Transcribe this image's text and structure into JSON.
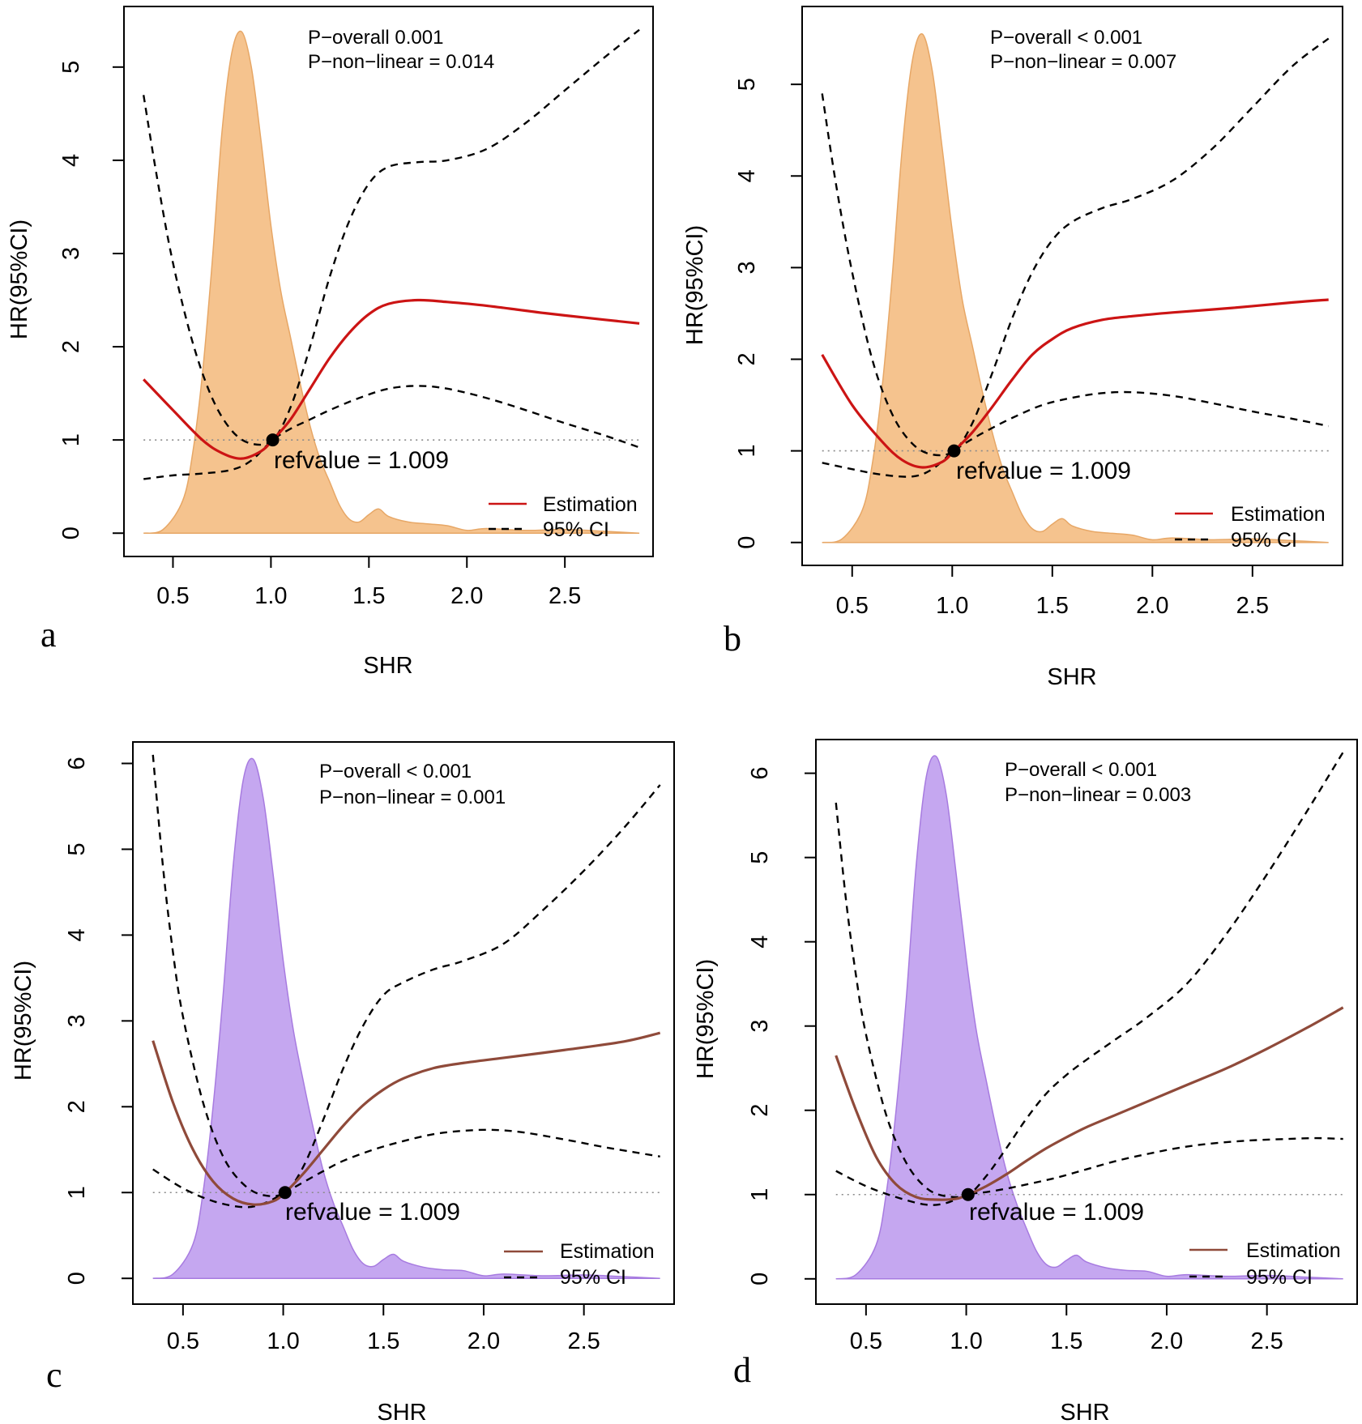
{
  "figure": {
    "colors": {
      "orange_fill": "#f5c38e",
      "orange_edge": "#e7a766",
      "purple_fill": "#c5a7f0",
      "purple_edge": "#a77be0",
      "red_line": "#cc1414",
      "brown_line": "#8f4a3a",
      "ci_line": "#000000",
      "ref_line": "#8a8a8a"
    }
  },
  "chart_data": [
    {
      "panel": "a",
      "type": "line",
      "xlabel": "SHR",
      "ylabel": "HR(95%CI)",
      "xlim": [
        0.25,
        2.95
      ],
      "ylim": [
        -0.25,
        5.65
      ],
      "xticks": [
        0.5,
        1.0,
        1.5,
        2.0,
        2.5
      ],
      "xtick_labels": [
        "0.5",
        "1.0",
        "1.5",
        "2.0",
        "2.5"
      ],
      "yticks": [
        0,
        1,
        2,
        3,
        4,
        5
      ],
      "ytick_labels": [
        "0",
        "1",
        "2",
        "3",
        "4",
        "5"
      ],
      "p_overall": "P−overall 0.001",
      "p_nonlinear": "P−non−linear = 0.014",
      "ref_label": "refvalue = 1.009",
      "ref_point": [
        1.009,
        1.0
      ],
      "reference_line_y": 1,
      "legend": [
        {
          "name": "Estimation",
          "style": "solid"
        },
        {
          "name": "95% CI",
          "style": "dashed"
        }
      ],
      "line_color_key": "red_line",
      "fill_color_key": "orange_fill",
      "edge_color_key": "orange_edge",
      "series": [
        {
          "name": "Estimation",
          "x": [
            0.35,
            0.5,
            0.65,
            0.75,
            0.85,
            0.95,
            1.009,
            1.1,
            1.2,
            1.3,
            1.4,
            1.5,
            1.6,
            1.75,
            1.9,
            2.1,
            2.4,
            2.7,
            2.88
          ],
          "y": [
            1.65,
            1.32,
            1.0,
            0.86,
            0.8,
            0.88,
            1.0,
            1.22,
            1.55,
            1.88,
            2.15,
            2.35,
            2.46,
            2.5,
            2.48,
            2.44,
            2.36,
            2.29,
            2.25
          ]
        },
        {
          "name": "95% CI upper",
          "x": [
            0.35,
            0.42,
            0.5,
            0.6,
            0.7,
            0.8,
            0.9,
            1.009,
            1.1,
            1.2,
            1.3,
            1.4,
            1.5,
            1.6,
            1.75,
            1.9,
            2.1,
            2.3,
            2.5,
            2.7,
            2.88
          ],
          "y": [
            4.7,
            3.8,
            2.9,
            2.05,
            1.45,
            1.1,
            0.96,
            1.0,
            1.35,
            2.0,
            2.75,
            3.35,
            3.75,
            3.93,
            3.98,
            4.0,
            4.12,
            4.4,
            4.75,
            5.1,
            5.4
          ]
        },
        {
          "name": "95% CI lower",
          "x": [
            0.35,
            0.5,
            0.65,
            0.8,
            0.9,
            1.009,
            1.1,
            1.2,
            1.3,
            1.45,
            1.6,
            1.75,
            1.9,
            2.1,
            2.3,
            2.5,
            2.7,
            2.88
          ],
          "y": [
            0.58,
            0.62,
            0.64,
            0.68,
            0.78,
            1.0,
            1.12,
            1.22,
            1.32,
            1.45,
            1.55,
            1.58,
            1.55,
            1.45,
            1.32,
            1.18,
            1.05,
            0.92
          ]
        },
        {
          "name": "density",
          "x": [
            0.35,
            0.45,
            0.55,
            0.6,
            0.65,
            0.7,
            0.75,
            0.8,
            0.85,
            0.9,
            0.95,
            1.0,
            1.05,
            1.1,
            1.15,
            1.2,
            1.25,
            1.3,
            1.35,
            1.4,
            1.45,
            1.5,
            1.55,
            1.6,
            1.7,
            1.8,
            1.9,
            2.0,
            2.1,
            2.3,
            2.5,
            2.7,
            2.88
          ],
          "y": [
            0.0,
            0.04,
            0.35,
            0.85,
            1.7,
            2.9,
            4.3,
            5.15,
            5.38,
            5.0,
            4.2,
            3.3,
            2.6,
            2.1,
            1.6,
            1.15,
            0.8,
            0.55,
            0.3,
            0.15,
            0.12,
            0.2,
            0.26,
            0.18,
            0.12,
            0.1,
            0.08,
            0.03,
            0.05,
            0.03,
            0.04,
            0.02,
            0.0
          ]
        }
      ]
    },
    {
      "panel": "b",
      "type": "line",
      "xlabel": "SHR",
      "ylabel": "HR(95%CI)",
      "xlim": [
        0.25,
        2.95
      ],
      "ylim": [
        -0.25,
        5.85
      ],
      "xticks": [
        0.5,
        1.0,
        1.5,
        2.0,
        2.5
      ],
      "xtick_labels": [
        "0.5",
        "1.0",
        "1.5",
        "2.0",
        "2.5"
      ],
      "yticks": [
        0,
        1,
        2,
        3,
        4,
        5
      ],
      "ytick_labels": [
        "0",
        "1",
        "2",
        "3",
        "4",
        "5"
      ],
      "p_overall": "P−overall < 0.001",
      "p_nonlinear": "P−non−linear = 0.007",
      "ref_label": "refvalue = 1.009",
      "ref_point": [
        1.009,
        1.0
      ],
      "reference_line_y": 1,
      "legend": [
        {
          "name": "Estimation",
          "style": "solid"
        },
        {
          "name": "95% CI",
          "style": "dashed"
        }
      ],
      "line_color_key": "red_line",
      "fill_color_key": "orange_fill",
      "edge_color_key": "orange_edge",
      "series": [
        {
          "name": "Estimation",
          "x": [
            0.35,
            0.5,
            0.65,
            0.75,
            0.85,
            0.95,
            1.009,
            1.1,
            1.2,
            1.3,
            1.4,
            1.5,
            1.6,
            1.75,
            1.9,
            2.1,
            2.4,
            2.7,
            2.88
          ],
          "y": [
            2.05,
            1.5,
            1.1,
            0.9,
            0.82,
            0.88,
            1.0,
            1.2,
            1.48,
            1.78,
            2.05,
            2.22,
            2.34,
            2.43,
            2.47,
            2.51,
            2.56,
            2.62,
            2.65
          ]
        },
        {
          "name": "95% CI upper",
          "x": [
            0.35,
            0.42,
            0.5,
            0.6,
            0.7,
            0.8,
            0.9,
            1.009,
            1.1,
            1.2,
            1.3,
            1.4,
            1.5,
            1.6,
            1.75,
            1.9,
            2.1,
            2.3,
            2.5,
            2.7,
            2.88
          ],
          "y": [
            4.9,
            3.9,
            2.95,
            2.0,
            1.4,
            1.08,
            0.96,
            1.0,
            1.3,
            1.85,
            2.45,
            2.95,
            3.3,
            3.5,
            3.65,
            3.75,
            3.95,
            4.3,
            4.75,
            5.2,
            5.5
          ]
        },
        {
          "name": "95% CI lower",
          "x": [
            0.35,
            0.5,
            0.65,
            0.8,
            0.9,
            1.009,
            1.1,
            1.2,
            1.3,
            1.45,
            1.6,
            1.75,
            1.9,
            2.1,
            2.3,
            2.5,
            2.7,
            2.88
          ],
          "y": [
            0.87,
            0.8,
            0.74,
            0.72,
            0.8,
            1.0,
            1.13,
            1.25,
            1.36,
            1.5,
            1.58,
            1.63,
            1.64,
            1.6,
            1.52,
            1.43,
            1.35,
            1.27
          ]
        },
        {
          "name": "density",
          "x": [
            0.35,
            0.45,
            0.55,
            0.6,
            0.65,
            0.7,
            0.75,
            0.8,
            0.85,
            0.9,
            0.95,
            1.0,
            1.05,
            1.1,
            1.15,
            1.2,
            1.25,
            1.3,
            1.35,
            1.4,
            1.45,
            1.5,
            1.55,
            1.6,
            1.7,
            1.8,
            1.9,
            2.0,
            2.1,
            2.3,
            2.5,
            2.7,
            2.88
          ],
          "y": [
            0.0,
            0.04,
            0.35,
            0.85,
            1.7,
            2.9,
            4.3,
            5.25,
            5.55,
            5.15,
            4.3,
            3.4,
            2.65,
            2.15,
            1.65,
            1.2,
            0.82,
            0.55,
            0.3,
            0.15,
            0.12,
            0.2,
            0.26,
            0.18,
            0.12,
            0.1,
            0.08,
            0.03,
            0.05,
            0.03,
            0.04,
            0.02,
            0.0
          ]
        }
      ]
    },
    {
      "panel": "c",
      "type": "line",
      "xlabel": "SHR",
      "ylabel": "HR(95%CI)",
      "xlim": [
        0.25,
        2.95
      ],
      "ylim": [
        -0.3,
        6.25
      ],
      "xticks": [
        0.5,
        1.0,
        1.5,
        2.0,
        2.5
      ],
      "xtick_labels": [
        "0.5",
        "1.0",
        "1.5",
        "2.0",
        "2.5"
      ],
      "yticks": [
        0,
        1,
        2,
        3,
        4,
        5,
        6
      ],
      "ytick_labels": [
        "0",
        "1",
        "2",
        "3",
        "4",
        "5",
        "6"
      ],
      "p_overall": "P−overall < 0.001",
      "p_nonlinear": "P−non−linear = 0.001",
      "ref_label": "refvalue = 1.009",
      "ref_point": [
        1.009,
        1.0
      ],
      "reference_line_y": 1,
      "legend": [
        {
          "name": "Estimation",
          "style": "solid"
        },
        {
          "name": "95% CI",
          "style": "dashed"
        }
      ],
      "line_color_key": "brown_line",
      "fill_color_key": "purple_fill",
      "edge_color_key": "purple_edge",
      "series": [
        {
          "name": "Estimation",
          "x": [
            0.35,
            0.45,
            0.55,
            0.65,
            0.75,
            0.85,
            0.95,
            1.009,
            1.1,
            1.2,
            1.3,
            1.4,
            1.5,
            1.6,
            1.75,
            1.9,
            2.1,
            2.4,
            2.7,
            2.88
          ],
          "y": [
            2.77,
            2.05,
            1.5,
            1.13,
            0.93,
            0.86,
            0.9,
            1.0,
            1.22,
            1.5,
            1.78,
            2.02,
            2.2,
            2.33,
            2.45,
            2.51,
            2.57,
            2.66,
            2.76,
            2.86
          ]
        },
        {
          "name": "95% CI upper",
          "x": [
            0.35,
            0.4,
            0.45,
            0.5,
            0.6,
            0.7,
            0.8,
            0.9,
            1.009,
            1.1,
            1.2,
            1.3,
            1.4,
            1.5,
            1.6,
            1.75,
            1.9,
            2.1,
            2.3,
            2.5,
            2.7,
            2.88
          ],
          "y": [
            6.1,
            4.8,
            3.8,
            3.05,
            2.05,
            1.42,
            1.1,
            0.97,
            1.0,
            1.3,
            1.85,
            2.45,
            2.95,
            3.3,
            3.45,
            3.6,
            3.7,
            3.9,
            4.3,
            4.75,
            5.25,
            5.75
          ]
        },
        {
          "name": "95% CI lower",
          "x": [
            0.35,
            0.5,
            0.65,
            0.8,
            0.9,
            1.009,
            1.1,
            1.2,
            1.3,
            1.45,
            1.6,
            1.75,
            1.9,
            2.05,
            2.2,
            2.4,
            2.6,
            2.75,
            2.88
          ],
          "y": [
            1.27,
            1.05,
            0.9,
            0.83,
            0.87,
            1.0,
            1.12,
            1.25,
            1.37,
            1.5,
            1.6,
            1.68,
            1.72,
            1.73,
            1.7,
            1.62,
            1.53,
            1.47,
            1.42
          ]
        },
        {
          "name": "density",
          "x": [
            0.35,
            0.45,
            0.55,
            0.6,
            0.65,
            0.7,
            0.75,
            0.8,
            0.85,
            0.9,
            0.95,
            1.0,
            1.05,
            1.1,
            1.15,
            1.2,
            1.25,
            1.3,
            1.35,
            1.4,
            1.45,
            1.5,
            1.55,
            1.6,
            1.7,
            1.8,
            1.9,
            2.0,
            2.1,
            2.3,
            2.5,
            2.7,
            2.88
          ],
          "y": [
            0.0,
            0.05,
            0.4,
            1.0,
            2.0,
            3.3,
            4.8,
            5.8,
            6.05,
            5.6,
            4.7,
            3.7,
            2.9,
            2.3,
            1.75,
            1.25,
            0.88,
            0.6,
            0.33,
            0.17,
            0.14,
            0.22,
            0.28,
            0.2,
            0.13,
            0.1,
            0.09,
            0.03,
            0.05,
            0.03,
            0.04,
            0.02,
            0.0
          ]
        }
      ]
    },
    {
      "panel": "d",
      "type": "line",
      "xlabel": "SHR",
      "ylabel": "HR(95%CI)",
      "xlim": [
        0.25,
        2.95
      ],
      "ylim": [
        -0.3,
        6.4
      ],
      "xticks": [
        0.5,
        1.0,
        1.5,
        2.0,
        2.5
      ],
      "xtick_labels": [
        "0.5",
        "1.0",
        "1.5",
        "2.0",
        "2.5"
      ],
      "yticks": [
        0,
        1,
        2,
        3,
        4,
        5,
        6
      ],
      "ytick_labels": [
        "0",
        "1",
        "2",
        "3",
        "4",
        "5",
        "6"
      ],
      "p_overall": "P−overall < 0.001",
      "p_nonlinear": "P−non−linear = 0.003",
      "ref_label": "refvalue = 1.009",
      "ref_point": [
        1.009,
        1.0
      ],
      "reference_line_y": 1,
      "legend": [
        {
          "name": "Estimation",
          "style": "solid"
        },
        {
          "name": "95% CI",
          "style": "dashed"
        }
      ],
      "line_color_key": "brown_line",
      "fill_color_key": "purple_fill",
      "edge_color_key": "purple_edge",
      "series": [
        {
          "name": "Estimation",
          "x": [
            0.35,
            0.45,
            0.55,
            0.65,
            0.75,
            0.85,
            0.95,
            1.009,
            1.1,
            1.2,
            1.3,
            1.4,
            1.5,
            1.6,
            1.75,
            1.9,
            2.1,
            2.3,
            2.5,
            2.7,
            2.88
          ],
          "y": [
            2.65,
            2.0,
            1.45,
            1.12,
            0.97,
            0.94,
            0.95,
            1.0,
            1.1,
            1.24,
            1.4,
            1.55,
            1.68,
            1.8,
            1.95,
            2.1,
            2.3,
            2.5,
            2.73,
            2.98,
            3.22
          ]
        },
        {
          "name": "95% CI upper",
          "x": [
            0.35,
            0.4,
            0.45,
            0.5,
            0.6,
            0.7,
            0.8,
            0.9,
            1.009,
            1.1,
            1.2,
            1.3,
            1.4,
            1.5,
            1.6,
            1.75,
            1.9,
            2.1,
            2.3,
            2.5,
            2.7,
            2.88
          ],
          "y": [
            5.65,
            4.5,
            3.6,
            2.9,
            1.95,
            1.38,
            1.08,
            0.98,
            1.0,
            1.22,
            1.55,
            1.9,
            2.2,
            2.42,
            2.6,
            2.85,
            3.1,
            3.5,
            4.1,
            4.8,
            5.55,
            6.25
          ]
        },
        {
          "name": "95% CI lower",
          "x": [
            0.35,
            0.5,
            0.65,
            0.8,
            0.9,
            1.009,
            1.1,
            1.2,
            1.3,
            1.45,
            1.6,
            1.75,
            1.9,
            2.05,
            2.2,
            2.4,
            2.6,
            2.75,
            2.88
          ],
          "y": [
            1.28,
            1.1,
            0.97,
            0.88,
            0.9,
            1.0,
            1.03,
            1.07,
            1.12,
            1.2,
            1.3,
            1.4,
            1.48,
            1.55,
            1.6,
            1.64,
            1.66,
            1.67,
            1.66
          ]
        },
        {
          "name": "density",
          "x": [
            0.35,
            0.45,
            0.55,
            0.6,
            0.65,
            0.7,
            0.75,
            0.8,
            0.85,
            0.9,
            0.95,
            1.0,
            1.05,
            1.1,
            1.15,
            1.2,
            1.25,
            1.3,
            1.35,
            1.4,
            1.45,
            1.5,
            1.55,
            1.6,
            1.7,
            1.8,
            1.9,
            2.0,
            2.1,
            2.3,
            2.5,
            2.7,
            2.88
          ],
          "y": [
            0.0,
            0.05,
            0.4,
            1.0,
            2.0,
            3.3,
            4.9,
            5.95,
            6.2,
            5.75,
            4.8,
            3.8,
            2.95,
            2.35,
            1.78,
            1.28,
            0.9,
            0.6,
            0.33,
            0.17,
            0.14,
            0.22,
            0.28,
            0.2,
            0.13,
            0.1,
            0.09,
            0.03,
            0.05,
            0.03,
            0.04,
            0.02,
            0.0
          ]
        }
      ]
    }
  ]
}
